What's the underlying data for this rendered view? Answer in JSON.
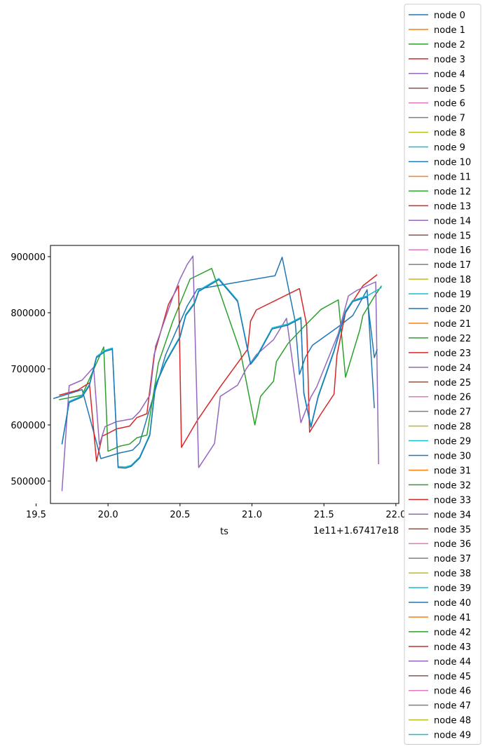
{
  "colors": [
    "#1f77b4",
    "#ff7f0e",
    "#2ca02c",
    "#d62728",
    "#9467bd",
    "#8c564b",
    "#e377c2",
    "#7f7f7f",
    "#bcbd22",
    "#17becf"
  ],
  "chart_data": {
    "type": "line",
    "xlabel": "ts",
    "ylabel": "",
    "x_offset_text": "1e11+1.67417e18",
    "xlim": [
      19.6,
      22.02
    ],
    "ylim": [
      460000,
      920000
    ],
    "x_ticks": [
      19.5,
      20.0,
      20.5,
      21.0,
      21.5,
      22.0
    ],
    "x_tick_labels": [
      "19.5",
      "20.0",
      "20.5",
      "21.0",
      "21.5",
      "22.0"
    ],
    "y_ticks": [
      500000,
      600000,
      700000,
      800000,
      900000
    ],
    "y_tick_labels": [
      "500000",
      "600000",
      "700000",
      "800000",
      "900000"
    ],
    "legend_position": "right",
    "series": [
      {
        "name": "node 0",
        "color_index": 0,
        "points": [
          [
            19.62,
            647000
          ],
          [
            19.82,
            663000
          ],
          [
            19.95,
            540000
          ],
          [
            20.08,
            550000
          ],
          [
            20.17,
            555000
          ],
          [
            20.22,
            568000
          ],
          [
            20.4,
            725000
          ],
          [
            20.55,
            812000
          ],
          [
            20.62,
            842000
          ],
          [
            21.16,
            866000
          ],
          [
            21.21,
            899000
          ],
          [
            21.3,
            785000
          ],
          [
            21.33,
            690000
          ],
          [
            21.37,
            720000
          ],
          [
            21.42,
            742000
          ],
          [
            21.6,
            775000
          ],
          [
            21.7,
            795000
          ],
          [
            21.8,
            841000
          ],
          [
            21.85,
            630000
          ]
        ]
      },
      {
        "name": "node 2",
        "color_index": 2,
        "points": [
          [
            19.66,
            645000
          ],
          [
            19.82,
            653000
          ],
          [
            19.97,
            739000
          ],
          [
            20.0,
            553000
          ],
          [
            20.08,
            562000
          ],
          [
            20.15,
            566000
          ],
          [
            20.2,
            577000
          ],
          [
            20.27,
            582000
          ],
          [
            20.35,
            710000
          ],
          [
            20.45,
            785000
          ],
          [
            20.57,
            860000
          ],
          [
            20.72,
            879000
          ],
          [
            20.92,
            730000
          ],
          [
            21.02,
            600000
          ],
          [
            21.06,
            651000
          ],
          [
            21.15,
            678000
          ],
          [
            21.17,
            713000
          ],
          [
            21.25,
            745000
          ],
          [
            21.36,
            775000
          ],
          [
            21.48,
            806000
          ],
          [
            21.6,
            823000
          ],
          [
            21.65,
            685000
          ],
          [
            21.75,
            770000
          ],
          [
            21.77,
            795000
          ],
          [
            21.85,
            829000
          ],
          [
            21.9,
            848000
          ]
        ]
      },
      {
        "name": "node 3",
        "color_index": 3,
        "points": [
          [
            19.66,
            653000
          ],
          [
            19.79,
            662000
          ],
          [
            19.87,
            675000
          ],
          [
            19.92,
            535000
          ],
          [
            19.96,
            580000
          ],
          [
            20.0,
            585000
          ],
          [
            20.06,
            593000
          ],
          [
            20.15,
            598000
          ],
          [
            20.2,
            613000
          ],
          [
            20.27,
            620000
          ],
          [
            20.32,
            725000
          ],
          [
            20.42,
            815000
          ],
          [
            20.49,
            848000
          ],
          [
            20.51,
            560000
          ],
          [
            20.62,
            608000
          ],
          [
            20.78,
            668000
          ],
          [
            20.97,
            735000
          ],
          [
            20.99,
            785000
          ],
          [
            21.03,
            805000
          ],
          [
            21.33,
            843000
          ],
          [
            21.38,
            778000
          ],
          [
            21.4,
            587000
          ],
          [
            21.48,
            620000
          ],
          [
            21.57,
            655000
          ],
          [
            21.59,
            724000
          ],
          [
            21.65,
            800000
          ],
          [
            21.77,
            848000
          ],
          [
            21.87,
            868000
          ]
        ]
      },
      {
        "name": "node 4",
        "color_index": 4,
        "points": [
          [
            19.68,
            482000
          ],
          [
            19.73,
            670000
          ],
          [
            19.82,
            680000
          ],
          [
            19.9,
            703000
          ],
          [
            19.94,
            565000
          ],
          [
            19.98,
            597000
          ],
          [
            20.06,
            606000
          ],
          [
            20.17,
            611000
          ],
          [
            20.22,
            624000
          ],
          [
            20.29,
            653000
          ],
          [
            20.33,
            740000
          ],
          [
            20.45,
            828000
          ],
          [
            20.5,
            860000
          ],
          [
            20.55,
            886000
          ],
          [
            20.59,
            901000
          ],
          [
            20.63,
            524000
          ],
          [
            20.74,
            567000
          ],
          [
            20.78,
            651000
          ],
          [
            20.9,
            671000
          ],
          [
            20.96,
            700000
          ],
          [
            21.03,
            725000
          ],
          [
            21.15,
            752000
          ],
          [
            21.24,
            790000
          ],
          [
            21.34,
            604000
          ],
          [
            21.41,
            650000
          ],
          [
            21.45,
            668000
          ],
          [
            21.6,
            763000
          ],
          [
            21.67,
            830000
          ],
          [
            21.73,
            840000
          ],
          [
            21.86,
            855000
          ],
          [
            21.88,
            530000
          ]
        ]
      },
      {
        "name": "node 9",
        "color_index": 9,
        "points": [
          [
            19.68,
            565000
          ],
          [
            19.73,
            642000
          ],
          [
            19.82,
            652000
          ],
          [
            19.87,
            672000
          ],
          [
            19.92,
            722000
          ],
          [
            19.98,
            733000
          ],
          [
            20.03,
            737000
          ],
          [
            20.07,
            526000
          ],
          [
            20.12,
            525000
          ],
          [
            20.16,
            528000
          ],
          [
            20.22,
            543000
          ],
          [
            20.29,
            583000
          ],
          [
            20.33,
            672000
          ],
          [
            20.4,
            713000
          ],
          [
            20.5,
            758000
          ],
          [
            20.54,
            797000
          ],
          [
            20.6,
            818000
          ],
          [
            20.63,
            840000
          ],
          [
            20.77,
            861000
          ],
          [
            20.9,
            822000
          ],
          [
            20.99,
            710000
          ],
          [
            21.04,
            726000
          ],
          [
            21.14,
            773000
          ],
          [
            21.25,
            780000
          ],
          [
            21.34,
            792000
          ],
          [
            21.36,
            658000
          ],
          [
            21.41,
            598000
          ],
          [
            21.46,
            652000
          ],
          [
            21.57,
            733000
          ],
          [
            21.65,
            803000
          ],
          [
            21.7,
            822000
          ],
          [
            21.8,
            830000
          ],
          [
            21.9,
            845000
          ]
        ]
      },
      {
        "name": "node 10",
        "color_index": 0,
        "points": [
          [
            19.68,
            566000
          ],
          [
            19.73,
            640000
          ],
          [
            19.82,
            650000
          ],
          [
            19.87,
            670000
          ],
          [
            19.92,
            720000
          ],
          [
            19.98,
            731000
          ],
          [
            20.03,
            735000
          ],
          [
            20.07,
            524000
          ],
          [
            20.12,
            523000
          ],
          [
            20.16,
            526000
          ],
          [
            20.22,
            541000
          ],
          [
            20.29,
            581000
          ],
          [
            20.33,
            670000
          ],
          [
            20.4,
            711000
          ],
          [
            20.5,
            756000
          ],
          [
            20.54,
            795000
          ],
          [
            20.6,
            816000
          ],
          [
            20.63,
            838000
          ],
          [
            20.77,
            859000
          ],
          [
            20.9,
            820000
          ],
          [
            20.99,
            708000
          ],
          [
            21.04,
            724000
          ],
          [
            21.14,
            771000
          ],
          [
            21.25,
            778000
          ],
          [
            21.34,
            790000
          ],
          [
            21.36,
            656000
          ],
          [
            21.41,
            596000
          ],
          [
            21.46,
            650000
          ],
          [
            21.57,
            731000
          ],
          [
            21.65,
            801000
          ],
          [
            21.7,
            820000
          ],
          [
            21.8,
            828000
          ],
          [
            21.85,
            720000
          ],
          [
            21.87,
            735000
          ]
        ]
      }
    ],
    "legend_entries": [
      "node 0",
      "node 1",
      "node 2",
      "node 3",
      "node 4",
      "node 5",
      "node 6",
      "node 7",
      "node 8",
      "node 9",
      "node 10",
      "node 11",
      "node 12",
      "node 13",
      "node 14",
      "node 15",
      "node 16",
      "node 17",
      "node 18",
      "node 19",
      "node 20",
      "node 21",
      "node 22",
      "node 23",
      "node 24",
      "node 25",
      "node 26",
      "node 27",
      "node 28",
      "node 29",
      "node 30",
      "node 31",
      "node 32",
      "node 33",
      "node 34",
      "node 35",
      "node 36",
      "node 37",
      "node 38",
      "node 39",
      "node 40",
      "node 41",
      "node 42",
      "node 43",
      "node 44",
      "node 45",
      "node 46",
      "node 47",
      "node 48",
      "node 49"
    ]
  }
}
